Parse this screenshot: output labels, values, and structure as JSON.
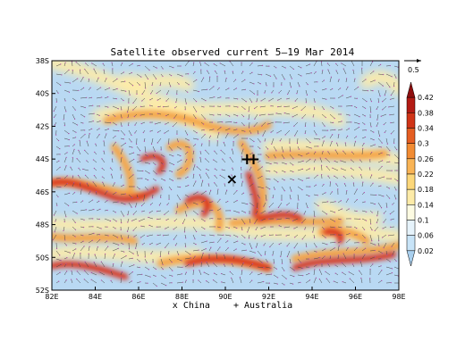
{
  "title": "Satellite observed current 5–19 Mar 2014",
  "reference_vector_label": "0.5",
  "map": {
    "lon_range": [
      82,
      98
    ],
    "lat_range": [
      -52,
      -38
    ],
    "lon_ticks": [
      "82E",
      "84E",
      "86E",
      "88E",
      "90E",
      "92E",
      "94E",
      "96E",
      "98E"
    ],
    "lat_ticks": [
      "38S",
      "40S",
      "42S",
      "44S",
      "46S",
      "48S",
      "50S",
      "52S"
    ]
  },
  "colorbar": {
    "levels": [
      "0.02",
      "0.06",
      "0.1",
      "0.14",
      "0.18",
      "0.22",
      "0.26",
      "0.3",
      "0.34",
      "0.38",
      "0.42"
    ],
    "colors": [
      "#a8cfee",
      "#c8e4f8",
      "#e6f3fb",
      "#fdfbe2",
      "#fdeba8",
      "#fcd77a",
      "#f9b455",
      "#f28c33",
      "#e55e22",
      "#d03417",
      "#b31b14",
      "#8e0e0e"
    ]
  },
  "markers": [
    {
      "symbol": "×",
      "name": "China",
      "lon": 90.3,
      "lat": -45.2
    },
    {
      "symbol": "+",
      "name": "Australia",
      "lon": 91.0,
      "lat": -44.0
    },
    {
      "symbol": "+",
      "name": "Australia",
      "lon": 91.3,
      "lat": -44.0
    }
  ],
  "legend": {
    "china": "x China",
    "australia": "+ Australia"
  }
}
